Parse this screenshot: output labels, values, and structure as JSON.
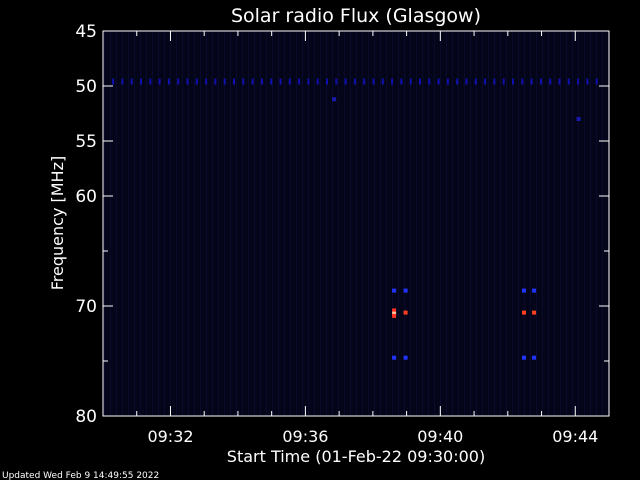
{
  "chart_data": {
    "type": "heatmap",
    "title": "Solar radio Flux (Glasgow)",
    "xlabel": "Start Time (01-Feb-22 09:30:00)",
    "ylabel": "Frequency [MHz]",
    "x_unit": "minutes after 09:30:00",
    "xlim": [
      0,
      15
    ],
    "ylim": [
      45,
      80
    ],
    "y_reversed": true,
    "x_ticks": [
      {
        "value": 2,
        "label": "09:32"
      },
      {
        "value": 6,
        "label": "09:36"
      },
      {
        "value": 10,
        "label": "09:40"
      },
      {
        "value": 14,
        "label": "09:44"
      }
    ],
    "y_ticks": [
      {
        "value": 45,
        "label": "45"
      },
      {
        "value": 50,
        "label": "50"
      },
      {
        "value": 55,
        "label": "55"
      },
      {
        "value": 60,
        "label": "60"
      },
      {
        "value": 70,
        "label": "70"
      },
      {
        "value": 80,
        "label": "80"
      }
    ],
    "background_color": "#05051a",
    "features": [
      {
        "kind": "band",
        "frequency": 49.6,
        "x_start": 0.3,
        "x_end": 14.9,
        "color": "#1010b0"
      },
      {
        "kind": "spot",
        "time": 8.63,
        "frequency": 68.6,
        "color": "#2233ff"
      },
      {
        "kind": "spot",
        "time": 8.63,
        "frequency": 70.4,
        "color": "#ff3020"
      },
      {
        "kind": "spot",
        "time": 8.63,
        "frequency": 70.7,
        "color": "#ffc0a0"
      },
      {
        "kind": "spot",
        "time": 8.63,
        "frequency": 70.9,
        "color": "#ff3020"
      },
      {
        "kind": "spot",
        "time": 8.63,
        "frequency": 74.7,
        "color": "#2233ff"
      },
      {
        "kind": "spot",
        "time": 8.97,
        "frequency": 68.6,
        "color": "#2233ff"
      },
      {
        "kind": "spot",
        "time": 8.97,
        "frequency": 70.6,
        "color": "#ff4020"
      },
      {
        "kind": "spot",
        "time": 8.97,
        "frequency": 74.7,
        "color": "#2233ff"
      },
      {
        "kind": "spot",
        "time": 12.48,
        "frequency": 68.6,
        "color": "#2233ff"
      },
      {
        "kind": "spot",
        "time": 12.48,
        "frequency": 70.6,
        "color": "#ff4020"
      },
      {
        "kind": "spot",
        "time": 12.48,
        "frequency": 74.7,
        "color": "#2233ff"
      },
      {
        "kind": "spot",
        "time": 12.78,
        "frequency": 68.6,
        "color": "#2233ff"
      },
      {
        "kind": "spot",
        "time": 12.78,
        "frequency": 70.6,
        "color": "#ff4020"
      },
      {
        "kind": "spot",
        "time": 12.78,
        "frequency": 74.7,
        "color": "#2233ff"
      },
      {
        "kind": "spot",
        "time": 6.85,
        "frequency": 51.2,
        "color": "#1a1ab0"
      },
      {
        "kind": "spot",
        "time": 14.1,
        "frequency": 53.0,
        "color": "#1a1ab0"
      }
    ]
  },
  "footer": {
    "updated_text": "Updated Wed Feb  9 14:49:55 2022"
  }
}
